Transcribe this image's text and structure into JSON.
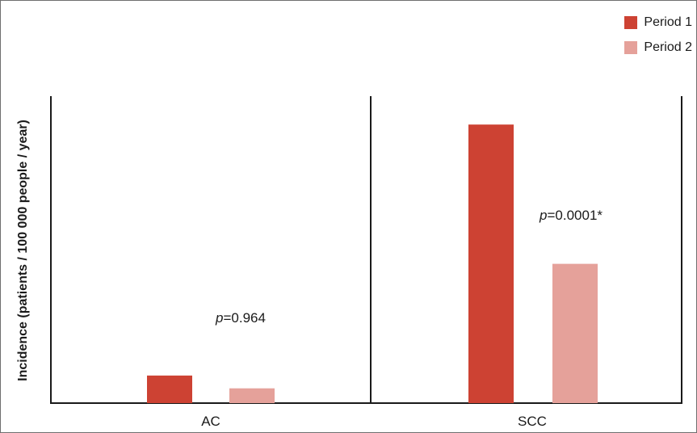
{
  "chart_data": {
    "type": "bar",
    "title": "",
    "ylabel": "Incidence (patients / 100 000 people / year)",
    "xlabel": "",
    "categories": [
      "AC",
      "SCC"
    ],
    "series": [
      {
        "name": "Period 1",
        "values": [
          0.97,
          9.8
        ]
      },
      {
        "name": "Period 2",
        "values": [
          0.52,
          4.9
        ]
      }
    ],
    "ylim": [
      0,
      10.8
    ],
    "y_ticks_shown": false,
    "grid": false,
    "legend_position": "top-right",
    "colors": {
      "Period 1": "#cd4233",
      "Period 2": "#e5a19a"
    },
    "annotations": [
      {
        "category": "AC",
        "p_symbol": "p",
        "p_value_text": "=0.964"
      },
      {
        "category": "SCC",
        "p_symbol": "p",
        "p_value_text": "=0.0001*"
      }
    ]
  }
}
